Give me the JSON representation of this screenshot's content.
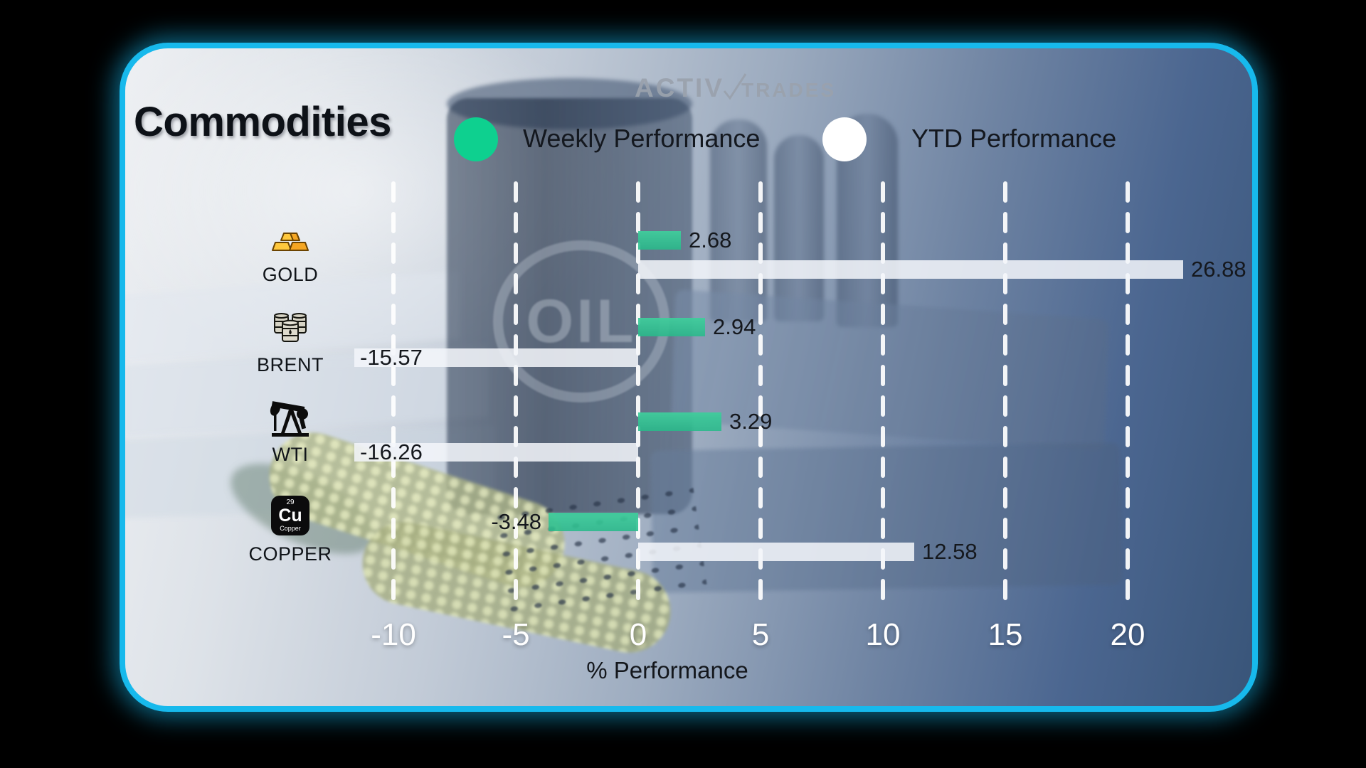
{
  "brand": {
    "logo_left": "ACTIV",
    "logo_right": "TRADES"
  },
  "header": {
    "title": "Commodities"
  },
  "legend": [
    {
      "label": "Weekly Performance",
      "color": "#0ed08f"
    },
    {
      "label": "YTD Performance",
      "color": "#ffffff"
    }
  ],
  "chart_data": {
    "type": "bar",
    "orientation": "horizontal",
    "categories": [
      "GOLD",
      "BRENT",
      "WTI",
      "COPPER"
    ],
    "series": [
      {
        "name": "Weekly Performance",
        "color": "#35c795",
        "values": [
          2.68,
          2.94,
          3.29,
          -3.48
        ]
      },
      {
        "name": "YTD Performance",
        "color": "#f3f6fa",
        "values": [
          26.88,
          -15.57,
          -16.26,
          12.58
        ]
      }
    ],
    "x_ticks": [
      -10,
      -5,
      0,
      5,
      10,
      15,
      20
    ],
    "xlabel": "% Performance",
    "xlim": [
      -12.5,
      22.5
    ],
    "grid": "dashed-vertical-white",
    "legend_position": "top",
    "icons": [
      "gold-bars",
      "oil-barrels",
      "oil-pump-jack",
      "copper-element"
    ]
  },
  "copper_tile": {
    "number": "29",
    "symbol": "Cu",
    "caption": "Copper"
  },
  "background": {
    "oil_label": "OIL"
  }
}
